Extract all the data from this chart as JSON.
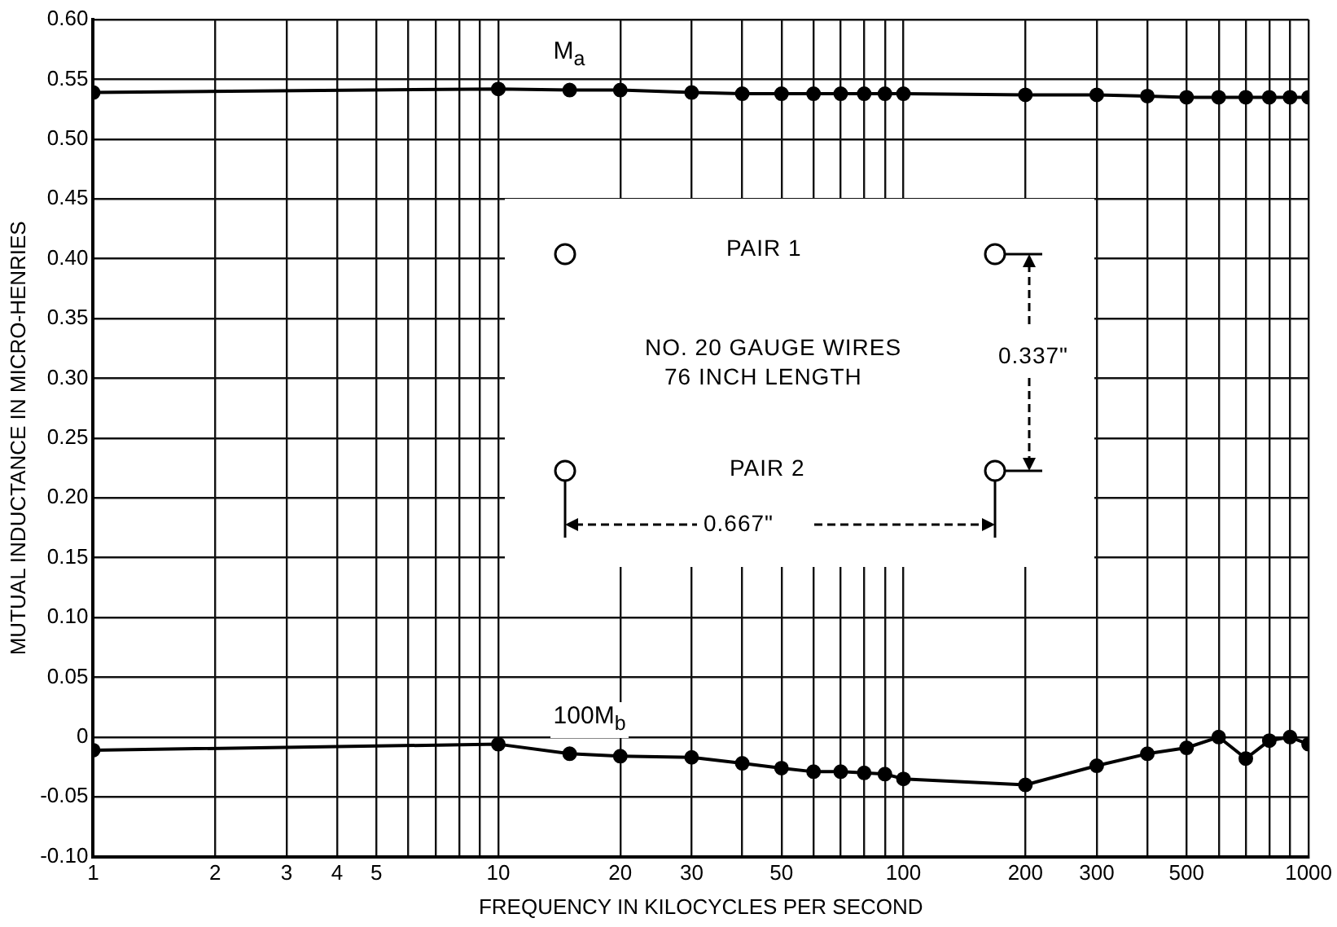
{
  "chart_data": {
    "type": "line",
    "xlabel": "FREQUENCY IN KILOCYCLES PER SECOND",
    "ylabel": "MUTUAL INDUCTANCE IN MICRO-HENRIES",
    "x": [
      1,
      10,
      15,
      20,
      30,
      40,
      50,
      60,
      70,
      80,
      90,
      100,
      200,
      300,
      400,
      500,
      600,
      700,
      800,
      900,
      1000
    ],
    "series": [
      {
        "name": "M$_{a}$",
        "color": "#000000",
        "values": [
          0.539,
          0.542,
          0.541,
          0.541,
          0.539,
          0.538,
          0.538,
          0.538,
          0.538,
          0.538,
          0.538,
          0.538,
          0.537,
          0.537,
          0.536,
          0.535,
          0.535,
          0.535,
          0.535,
          0.535,
          0.535
        ]
      },
      {
        "name": "100M$_{b}$",
        "color": "#000000",
        "values": [
          -0.011,
          -0.006,
          -0.014,
          -0.016,
          -0.017,
          -0.022,
          -0.026,
          -0.029,
          -0.029,
          -0.03,
          -0.031,
          -0.035,
          -0.04,
          -0.024,
          -0.014,
          -0.009,
          0,
          -0.018,
          -0.003,
          0,
          -0.006
        ]
      }
    ],
    "log": "x",
    "xlim": [
      1,
      1000
    ],
    "ylim": [
      -0.1,
      0.6
    ],
    "xticks": [
      1,
      2,
      3,
      4,
      5,
      {
        "value": 6,
        "label": null
      },
      {
        "value": 7,
        "label": null
      },
      {
        "value": 8,
        "label": null
      },
      {
        "value": 9,
        "label": null
      },
      10,
      20,
      30,
      {
        "value": 40,
        "label": null
      },
      50,
      {
        "value": 60,
        "label": null
      },
      {
        "value": 70,
        "label": null
      },
      {
        "value": 80,
        "label": null
      },
      {
        "value": 90,
        "label": null
      },
      100,
      200,
      300,
      {
        "value": 400,
        "label": null
      },
      500,
      {
        "value": 600,
        "label": null
      },
      {
        "value": 700,
        "label": null
      },
      {
        "value": 800,
        "label": null
      },
      {
        "value": 900,
        "label": null
      },
      1000
    ],
    "yticks": [
      {
        "value": -0.1,
        "label": "-0.10"
      },
      -0.05,
      0,
      0.05,
      {
        "value": 0.1,
        "label": "0.10"
      },
      0.15,
      {
        "value": 0.2,
        "label": "0.20"
      },
      0.25,
      {
        "value": 0.3,
        "label": "0.30"
      },
      0.35,
      {
        "value": 0.4,
        "label": "0.40"
      },
      0.45,
      {
        "value": 0.5,
        "label": "0.50"
      },
      0.55,
      {
        "value": 0.6,
        "label": "0.60"
      }
    ],
    "grid": true,
    "marker": "circle",
    "line_style": "solid",
    "annotations": [
      "PAIR 1",
      "NO. 20 GAUGE WIRES",
      "76 INCH LENGTH",
      "PAIR 2",
      "0.337\"",
      "0.667\""
    ]
  }
}
